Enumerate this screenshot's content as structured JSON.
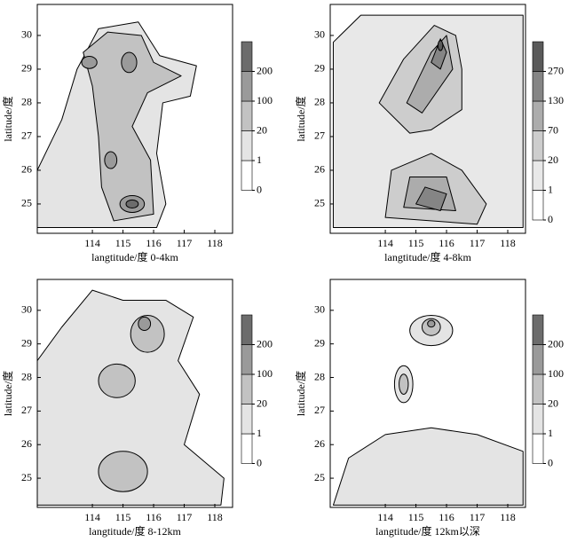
{
  "chart_data": [
    {
      "type": "contour",
      "xlabel": "langtitude/度 0-4km",
      "ylabel": "latitude/度",
      "xlim": [
        112.2,
        118.58
      ],
      "xticks": [
        114,
        115,
        116,
        117,
        118
      ],
      "ylim": [
        24.13,
        30.92
      ],
      "yticks": [
        25,
        26,
        27,
        28,
        29,
        30
      ],
      "colorbar": {
        "ticks": [
          0,
          1,
          20,
          100,
          200
        ],
        "colors": [
          "#ffffff",
          "#e4e4e4",
          "#c2c2c2",
          "#9a9a9a",
          "#6c6c6c"
        ]
      }
    },
    {
      "type": "contour",
      "xlabel": "langtitude/度 4-8km",
      "ylabel": "latitude/度",
      "xlim": [
        112.2,
        118.58
      ],
      "xticks": [
        114,
        115,
        116,
        117,
        118
      ],
      "ylim": [
        24.13,
        30.92
      ],
      "yticks": [
        25,
        26,
        27,
        28,
        29,
        30
      ],
      "colorbar": {
        "ticks": [
          0,
          1,
          20,
          70,
          130,
          270
        ],
        "colors": [
          "#ffffff",
          "#e8e8e8",
          "#cdcdcd",
          "#acacac",
          "#858585",
          "#5a5a5a"
        ]
      }
    },
    {
      "type": "contour",
      "xlabel": "langtitude/度 8-12km",
      "ylabel": "latitude/度",
      "xlim": [
        112.2,
        118.58
      ],
      "xticks": [
        114,
        115,
        116,
        117,
        118
      ],
      "ylim": [
        24.13,
        30.92
      ],
      "yticks": [
        25,
        26,
        27,
        28,
        29,
        30
      ],
      "colorbar": {
        "ticks": [
          0,
          1,
          20,
          100,
          200
        ],
        "colors": [
          "#ffffff",
          "#e4e4e4",
          "#c2c2c2",
          "#9a9a9a",
          "#6c6c6c"
        ]
      }
    },
    {
      "type": "contour",
      "xlabel": "langtitude/度 12km以深",
      "ylabel": "latitude/度",
      "xlim": [
        112.2,
        118.58
      ],
      "xticks": [
        114,
        115,
        116,
        117,
        118
      ],
      "ylim": [
        24.13,
        30.92
      ],
      "yticks": [
        25,
        26,
        27,
        28,
        29,
        30
      ],
      "colorbar": {
        "ticks": [
          0,
          1,
          20,
          100,
          200
        ],
        "colors": [
          "#ffffff",
          "#e4e4e4",
          "#c2c2c2",
          "#9a9a9a",
          "#6c6c6c"
        ]
      }
    }
  ]
}
